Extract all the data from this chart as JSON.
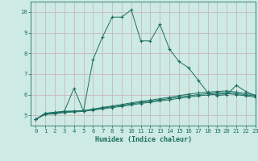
{
  "xlabel": "Humidex (Indice chaleur)",
  "bg_color": "#ceeae4",
  "grid_color": "#c8b8b8",
  "line_color": "#1a6e60",
  "xlim": [
    -0.5,
    23
  ],
  "ylim": [
    4.5,
    10.5
  ],
  "yticks": [
    5,
    6,
    7,
    8,
    9,
    10
  ],
  "xticks": [
    0,
    1,
    2,
    3,
    4,
    5,
    6,
    7,
    8,
    9,
    10,
    11,
    12,
    13,
    14,
    15,
    16,
    17,
    18,
    19,
    20,
    21,
    22,
    23
  ],
  "line1_x": [
    0,
    1,
    2,
    3,
    4,
    5,
    6,
    7,
    8,
    9,
    10,
    11,
    12,
    13,
    14,
    15,
    16,
    17,
    18,
    19,
    20,
    21,
    22,
    23
  ],
  "line1_y": [
    4.8,
    5.1,
    5.15,
    5.2,
    6.3,
    5.2,
    7.7,
    8.8,
    9.75,
    9.75,
    10.1,
    8.6,
    8.6,
    9.4,
    8.2,
    7.6,
    7.3,
    6.7,
    6.1,
    5.95,
    6.0,
    6.45,
    6.15,
    5.95
  ],
  "line2_x": [
    0,
    1,
    2,
    3,
    4,
    5,
    6,
    7,
    8,
    9,
    10,
    11,
    12,
    13,
    14,
    15,
    16,
    17,
    18,
    19,
    20,
    21,
    22,
    23
  ],
  "line2_y": [
    4.8,
    5.1,
    5.1,
    5.2,
    5.2,
    5.22,
    5.3,
    5.38,
    5.45,
    5.52,
    5.6,
    5.67,
    5.73,
    5.8,
    5.87,
    5.95,
    6.02,
    6.08,
    6.12,
    6.15,
    6.18,
    6.12,
    6.05,
    5.98
  ],
  "line3_x": [
    0,
    1,
    2,
    3,
    4,
    5,
    6,
    7,
    8,
    9,
    10,
    11,
    12,
    13,
    14,
    15,
    16,
    17,
    18,
    19,
    20,
    21,
    22,
    23
  ],
  "line3_y": [
    4.8,
    5.07,
    5.1,
    5.17,
    5.2,
    5.22,
    5.28,
    5.35,
    5.41,
    5.48,
    5.55,
    5.62,
    5.68,
    5.74,
    5.81,
    5.88,
    5.94,
    6.0,
    6.04,
    6.08,
    6.1,
    6.05,
    5.99,
    5.93
  ],
  "line4_x": [
    0,
    1,
    2,
    3,
    4,
    5,
    6,
    7,
    8,
    9,
    10,
    11,
    12,
    13,
    14,
    15,
    16,
    17,
    18,
    19,
    20,
    21,
    22,
    23
  ],
  "line4_y": [
    4.8,
    5.04,
    5.07,
    5.13,
    5.16,
    5.19,
    5.25,
    5.31,
    5.37,
    5.43,
    5.5,
    5.57,
    5.63,
    5.69,
    5.75,
    5.82,
    5.88,
    5.94,
    5.98,
    6.02,
    6.05,
    6.0,
    5.94,
    5.88
  ]
}
